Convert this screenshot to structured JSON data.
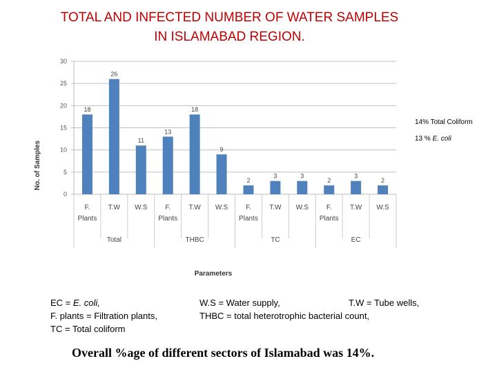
{
  "title_line1": "TOTAL AND INFECTED NUMBER OF WATER SAMPLES",
  "title_line2": "IN ISLAMABAD REGION.",
  "chart_data": {
    "type": "bar",
    "title": "TOTAL AND INFECTED NUMBER OF WATER SAMPLES IN ISLAMABAD REGION.",
    "xlabel": "Parameters",
    "ylabel": "No. of Samples",
    "ylim": [
      0,
      30
    ],
    "yticks": [
      0,
      5,
      10,
      15,
      20,
      25,
      30
    ],
    "groups": [
      "Total",
      "THBC",
      "TC",
      "EC"
    ],
    "subcategories": [
      [
        "F.",
        "Plants"
      ],
      [
        "T.W"
      ],
      [
        "W.S"
      ]
    ],
    "values": [
      18,
      26,
      11,
      13,
      18,
      9,
      2,
      3,
      3,
      2,
      3,
      2
    ],
    "bar_color": "#4f81bd",
    "grid": true
  },
  "notes": {
    "total_coliform": "14% Total Coliform",
    "ecoli_prefix": "13 % ",
    "ecoli_italic": "E. coli"
  },
  "legend": {
    "ec_prefix": "EC = ",
    "ec_italic": "E. coli,",
    "fplants": "F. plants = Filtration plants,",
    "tc": "TC = Total coliform",
    "ws": "W.S = Water supply,",
    "tw": "T.W = Tube wells,",
    "thbc": "THBC = total heterotrophic bacterial count,"
  },
  "overall": "Overall %age of different sectors of Islamabad was 14%."
}
